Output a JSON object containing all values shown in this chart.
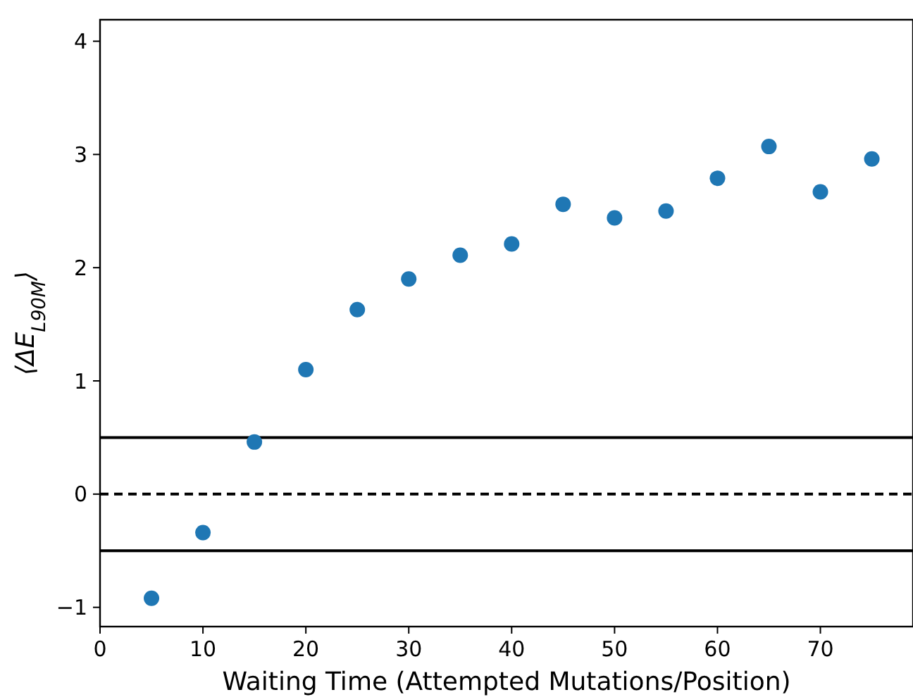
{
  "chart_data": {
    "type": "scatter",
    "xlabel": "Waiting Time (Attempted Mutations/Position)",
    "ylabel": "⟨ΔE$_{L90M}$⟩",
    "x": [
      5,
      10,
      15,
      20,
      25,
      30,
      35,
      40,
      45,
      50,
      55,
      60,
      65,
      70,
      75
    ],
    "series": [
      {
        "color": "#1f77b4",
        "values": [
          -0.92,
          -0.34,
          0.46,
          1.1,
          1.63,
          1.9,
          2.11,
          2.21,
          2.56,
          2.44,
          2.5,
          2.79,
          3.07,
          2.67,
          2.96
        ]
      }
    ],
    "xlim": [
      0,
      79
    ],
    "ylim": [
      -1.17,
      4.19
    ],
    "xticks": [
      0,
      10,
      20,
      30,
      40,
      50,
      60,
      70
    ],
    "yticks": [
      -1,
      0,
      1,
      2,
      3,
      4
    ],
    "grid": false,
    "marker": "circle",
    "ref_lines": [
      {
        "axis": "y",
        "value": 0.5,
        "color": "#000000",
        "line_style": "solid"
      },
      {
        "axis": "y",
        "value": 0,
        "color": "#000000",
        "line_style": "dashed"
      },
      {
        "axis": "y",
        "value": -0.5,
        "color": "#000000",
        "line_style": "solid"
      }
    ]
  }
}
